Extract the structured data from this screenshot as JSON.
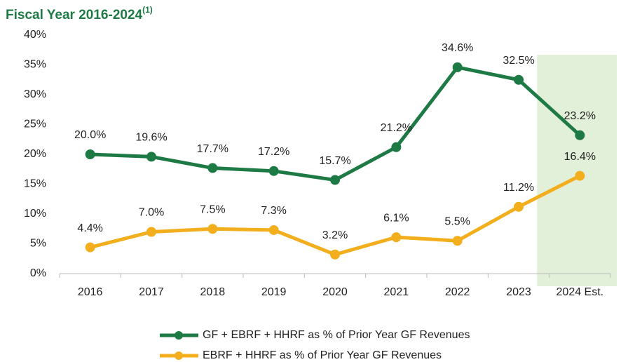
{
  "chart_data": {
    "type": "line",
    "title": "Fiscal Year 2016-2024",
    "title_superscript": "(1)",
    "categories": [
      "2016",
      "2017",
      "2018",
      "2019",
      "2020",
      "2021",
      "2022",
      "2023",
      "2024 Est."
    ],
    "series": [
      {
        "name": "GF + EBRF + HHRF as % of Prior Year GF Revenues",
        "color": "#1e7a45",
        "values": [
          20.0,
          19.6,
          17.7,
          17.2,
          15.7,
          21.2,
          34.6,
          32.5,
          23.2
        ],
        "value_labels": [
          "20.0%",
          "19.6%",
          "17.7%",
          "17.2%",
          "15.7%",
          "21.2%",
          "34.6%",
          "32.5%",
          "23.2%"
        ]
      },
      {
        "name": "EBRF + HHRF as % of Prior Year GF Revenues",
        "color": "#f2ae1c",
        "values": [
          4.4,
          7.0,
          7.5,
          7.3,
          3.2,
          6.1,
          5.5,
          11.2,
          16.4
        ],
        "value_labels": [
          "4.4%",
          "7.0%",
          "7.5%",
          "7.3%",
          "3.2%",
          "6.1%",
          "5.5%",
          "11.2%",
          "16.4%"
        ]
      }
    ],
    "ylim": [
      0,
      40
    ],
    "yticks": [
      {
        "value": 0,
        "label": "0%"
      },
      {
        "value": 5,
        "label": "5%"
      },
      {
        "value": 10,
        "label": "10%"
      },
      {
        "value": 15,
        "label": "15%"
      },
      {
        "value": 20,
        "label": "20%"
      },
      {
        "value": 25,
        "label": "25%"
      },
      {
        "value": 30,
        "label": "30%"
      },
      {
        "value": 35,
        "label": "35%"
      },
      {
        "value": 40,
        "label": "40%"
      }
    ],
    "grid": false,
    "legend": "bottom",
    "highlight": {
      "category_index": 8,
      "color": "#e2efd9"
    }
  }
}
